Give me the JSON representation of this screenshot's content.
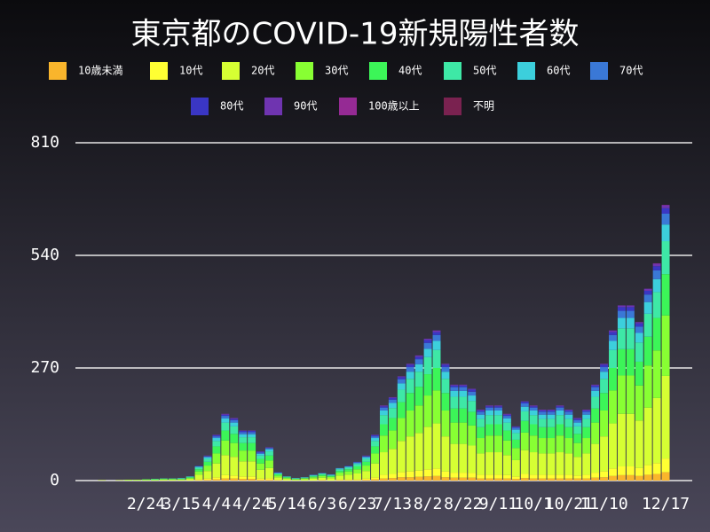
{
  "chart_data": {
    "type": "stacked-bar",
    "title": "東京都のCOVID-19新規陽性者数",
    "categories": [
      null,
      null,
      null,
      null,
      null,
      null,
      "2/24",
      null,
      null,
      null,
      "3/15",
      null,
      null,
      null,
      "4/4",
      null,
      null,
      null,
      "4/24",
      null,
      null,
      null,
      "5/14",
      null,
      null,
      null,
      "6/3",
      null,
      null,
      null,
      "6/23",
      null,
      null,
      null,
      "7/13",
      null,
      null,
      null,
      "8/2",
      null,
      null,
      null,
      "8/22",
      null,
      null,
      null,
      "9/11",
      null,
      null,
      null,
      "10/1",
      null,
      null,
      null,
      "10/21",
      null,
      null,
      null,
      "11/10",
      null,
      null,
      null,
      null,
      null,
      null,
      "12/17"
    ],
    "ylim": [
      0,
      810
    ],
    "yticks": [
      0,
      270,
      540,
      810
    ],
    "grid": true,
    "series": [
      {
        "name": "10歳未満",
        "color": "#f9b52c",
        "values": [
          0,
          0,
          0,
          0,
          0,
          0,
          0,
          0,
          0,
          0,
          0,
          0,
          1,
          2,
          3,
          5,
          5,
          4,
          4,
          2,
          2,
          1,
          0,
          0,
          0,
          0,
          1,
          0,
          1,
          1,
          1,
          2,
          3,
          5,
          6,
          8,
          8,
          9,
          10,
          11,
          8,
          7,
          7,
          7,
          5,
          5,
          5,
          5,
          4,
          6,
          5,
          5,
          5,
          5,
          5,
          5,
          5,
          7,
          8,
          11,
          13,
          13,
          11,
          14,
          16,
          20
        ]
      },
      {
        "name": "10代",
        "color": "#ffff33",
        "values": [
          0,
          0,
          0,
          0,
          0,
          0,
          0,
          0,
          0,
          0,
          0,
          1,
          2,
          3,
          5,
          8,
          7,
          6,
          6,
          3,
          4,
          1,
          1,
          0,
          0,
          1,
          1,
          1,
          2,
          2,
          2,
          3,
          5,
          9,
          10,
          12,
          14,
          15,
          17,
          18,
          14,
          12,
          12,
          11,
          9,
          9,
          9,
          8,
          6,
          10,
          9,
          9,
          9,
          9,
          9,
          7,
          9,
          12,
          14,
          18,
          21,
          21,
          19,
          23,
          26,
          33
        ]
      },
      {
        "name": "20代",
        "color": "#d6ff33",
        "values": [
          0,
          1,
          0,
          1,
          1,
          1,
          1,
          1,
          2,
          2,
          2,
          3,
          11,
          18,
          33,
          48,
          45,
          36,
          36,
          21,
          24,
          6,
          3,
          2,
          3,
          4,
          5,
          5,
          9,
          11,
          14,
          18,
          33,
          54,
          60,
          75,
          84,
          90,
          102,
          108,
          84,
          69,
          69,
          66,
          51,
          54,
          54,
          48,
          39,
          57,
          54,
          51,
          51,
          54,
          51,
          45,
          51,
          69,
          84,
          108,
          126,
          126,
          114,
          138,
          156,
          198
        ]
      },
      {
        "name": "30代",
        "color": "#88ff33",
        "values": [
          0,
          0,
          0,
          0,
          1,
          1,
          1,
          1,
          1,
          1,
          1,
          2,
          8,
          13,
          24,
          35,
          33,
          26,
          26,
          15,
          18,
          4,
          2,
          1,
          2,
          3,
          4,
          3,
          7,
          8,
          10,
          13,
          24,
          40,
          44,
          55,
          62,
          66,
          75,
          79,
          62,
          51,
          51,
          48,
          37,
          40,
          40,
          35,
          29,
          42,
          40,
          37,
          37,
          40,
          37,
          33,
          37,
          51,
          62,
          79,
          92,
          92,
          84,
          101,
          114,
          145
        ]
      },
      {
        "name": "40代",
        "color": "#3cf558",
        "values": [
          0,
          0,
          0,
          0,
          0,
          0,
          1,
          1,
          1,
          1,
          1,
          2,
          5,
          9,
          17,
          24,
          22,
          18,
          18,
          11,
          12,
          3,
          2,
          1,
          1,
          2,
          3,
          2,
          4,
          5,
          7,
          9,
          17,
          27,
          30,
          38,
          42,
          45,
          51,
          54,
          42,
          34,
          34,
          33,
          26,
          27,
          27,
          24,
          20,
          28,
          27,
          26,
          26,
          27,
          26,
          22,
          26,
          34,
          42,
          54,
          63,
          63,
          57,
          69,
          78,
          99
        ]
      },
      {
        "name": "50代",
        "color": "#3ee8a6",
        "values": [
          0,
          0,
          0,
          0,
          0,
          0,
          0,
          1,
          1,
          1,
          1,
          1,
          4,
          7,
          13,
          19,
          18,
          14,
          14,
          8,
          10,
          2,
          1,
          1,
          1,
          2,
          2,
          2,
          4,
          4,
          5,
          7,
          13,
          22,
          24,
          30,
          34,
          36,
          41,
          43,
          34,
          28,
          28,
          26,
          20,
          22,
          22,
          19,
          16,
          23,
          22,
          20,
          20,
          22,
          20,
          18,
          20,
          28,
          34,
          43,
          50,
          50,
          46,
          55,
          62,
          79
        ]
      },
      {
        "name": "60代",
        "color": "#3ccfdc",
        "values": [
          0,
          0,
          0,
          0,
          0,
          0,
          0,
          0,
          0,
          0,
          1,
          1,
          2,
          4,
          7,
          10,
          9,
          7,
          7,
          4,
          5,
          1,
          1,
          1,
          1,
          1,
          1,
          1,
          2,
          2,
          3,
          4,
          7,
          11,
          12,
          15,
          17,
          18,
          20,
          22,
          17,
          14,
          14,
          13,
          10,
          11,
          11,
          10,
          8,
          11,
          11,
          10,
          10,
          11,
          10,
          9,
          10,
          14,
          17,
          22,
          25,
          25,
          23,
          28,
          31,
          40
        ]
      },
      {
        "name": "70代",
        "color": "#3a78d6",
        "values": [
          0,
          0,
          0,
          0,
          0,
          0,
          0,
          0,
          0,
          0,
          0,
          0,
          1,
          2,
          4,
          6,
          6,
          5,
          5,
          3,
          3,
          1,
          0,
          0,
          0,
          1,
          1,
          1,
          1,
          1,
          2,
          2,
          4,
          7,
          8,
          10,
          11,
          12,
          14,
          14,
          11,
          9,
          9,
          9,
          7,
          7,
          7,
          6,
          5,
          8,
          7,
          7,
          7,
          7,
          7,
          6,
          7,
          9,
          11,
          14,
          17,
          17,
          15,
          18,
          21,
          26
        ]
      },
      {
        "name": "80代",
        "color": "#3a36c4",
        "values": [
          0,
          0,
          0,
          0,
          0,
          0,
          0,
          0,
          0,
          0,
          0,
          0,
          1,
          1,
          3,
          3,
          3,
          3,
          3,
          2,
          1,
          1,
          0,
          0,
          0,
          0,
          0,
          0,
          0,
          1,
          1,
          1,
          3,
          3,
          4,
          5,
          6,
          6,
          7,
          7,
          6,
          4,
          4,
          5,
          3,
          3,
          3,
          3,
          2,
          4,
          3,
          3,
          3,
          3,
          3,
          3,
          3,
          4,
          6,
          7,
          9,
          9,
          8,
          9,
          10,
          13
        ]
      },
      {
        "name": "90代",
        "color": "#6f34b0",
        "values": [
          0,
          0,
          0,
          0,
          0,
          0,
          0,
          0,
          0,
          0,
          0,
          0,
          0,
          1,
          1,
          2,
          2,
          1,
          1,
          1,
          1,
          0,
          0,
          0,
          0,
          0,
          0,
          0,
          0,
          0,
          0,
          1,
          1,
          2,
          2,
          2,
          2,
          3,
          3,
          4,
          2,
          2,
          2,
          2,
          2,
          2,
          2,
          2,
          1,
          1,
          2,
          2,
          2,
          2,
          2,
          2,
          2,
          2,
          2,
          4,
          4,
          4,
          3,
          5,
          6,
          7
        ]
      },
      {
        "name": "100歳以上",
        "color": "#952a94",
        "values": [
          0,
          0,
          0,
          0,
          0,
          0,
          0,
          0,
          0,
          0,
          0,
          0,
          0,
          0,
          0,
          0,
          0,
          0,
          0,
          0,
          0,
          0,
          0,
          0,
          0,
          0,
          0,
          0,
          0,
          0,
          0,
          0,
          0,
          0,
          0,
          0,
          0,
          0,
          0,
          0,
          0,
          0,
          0,
          0,
          0,
          0,
          0,
          0,
          0,
          0,
          0,
          0,
          0,
          0,
          0,
          0,
          0,
          0,
          0,
          0,
          0,
          0,
          0,
          0,
          1,
          1
        ]
      },
      {
        "name": "不明",
        "color": "#7a2250",
        "values": [
          0,
          0,
          0,
          0,
          0,
          0,
          0,
          0,
          0,
          0,
          0,
          0,
          0,
          0,
          0,
          0,
          0,
          0,
          0,
          0,
          0,
          0,
          0,
          0,
          0,
          0,
          0,
          0,
          0,
          0,
          0,
          0,
          0,
          0,
          0,
          0,
          0,
          0,
          0,
          0,
          0,
          0,
          0,
          0,
          0,
          0,
          0,
          0,
          0,
          0,
          0,
          0,
          0,
          0,
          0,
          0,
          0,
          0,
          0,
          0,
          0,
          0,
          0,
          0,
          0,
          0
        ]
      }
    ]
  }
}
